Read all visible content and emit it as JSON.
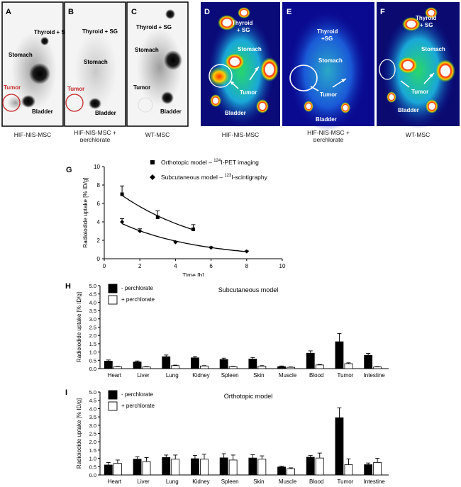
{
  "panels": [
    {
      "letter": "A",
      "caption": "HIF-NIS-MSC",
      "caption2": "",
      "labels": {
        "thyroid": "Thyroid + SG",
        "stomach": "Stomach",
        "tumor": "Tumor",
        "bladder": "Bladder"
      }
    },
    {
      "letter": "B",
      "caption": "HIF-NIS-MSC +",
      "caption2": "perchlorate",
      "labels": {
        "thyroid": "Thyroid + SG",
        "stomach": "Stomach",
        "tumor": "Tumor",
        "bladder": "Bladder"
      }
    },
    {
      "letter": "C",
      "caption": "WT-MSC",
      "caption2": "",
      "labels": {
        "thyroid": "Thyroid + SG",
        "stomach": "Stomach",
        "tumor": "Tumor",
        "bladder": "Bladder"
      }
    },
    {
      "letter": "D",
      "caption": "HIF-NIS-MSC",
      "caption2": "",
      "labels": {
        "thyroid1": "Thyroid",
        "thyroid2": "+ SG",
        "stomach": "Stomach",
        "tumor": "Tumor",
        "bladder": "Bladder"
      }
    },
    {
      "letter": "E",
      "caption": "HIF-NIS-MSC +",
      "caption2": "perchlorate",
      "labels": {
        "thyroid1": "Thyroid",
        "thyroid2": "+SG",
        "stomach": "Stomach",
        "tumor": "Tumor",
        "bladder": "Bladder"
      }
    },
    {
      "letter": "F",
      "caption": "WT-MSC",
      "caption2": "",
      "labels": {
        "thyroid1": "Thyroid",
        "thyroid2": "+ SG",
        "stomach": "Stomach",
        "tumor": "Tumor",
        "bladder": "Bladder"
      }
    }
  ],
  "colors": {
    "tumor_red": "#c62828",
    "pet_white": "#ffffff"
  },
  "chart_data": [
    {
      "type": "line",
      "panel": "G",
      "xlabel": "Time [h]",
      "ylabel": "Radioiodide uptake [% ID/g]",
      "xlim": [
        0,
        10
      ],
      "ylim": [
        0,
        10
      ],
      "xticks": [
        0,
        2,
        4,
        6,
        8,
        10
      ],
      "yticks": [
        0,
        2,
        4,
        6,
        8,
        10
      ],
      "series": [
        {
          "name": "Orthotopic model",
          "legend_prefix": "Orthotopic model – ",
          "legend_sup": "124",
          "legend_suffix": "I-PET imaging",
          "marker": "square",
          "x": [
            1,
            3,
            5
          ],
          "y": [
            7.0,
            4.5,
            3.2
          ],
          "err": [
            0.9,
            0.7,
            0.5
          ]
        },
        {
          "name": "Subcutaneous model",
          "legend_prefix": "Subcutaneous model – ",
          "legend_sup": "123",
          "legend_suffix": "I-scintigraphy",
          "marker": "diamond",
          "x": [
            1,
            2,
            4,
            6,
            8
          ],
          "y": [
            4.0,
            3.0,
            1.8,
            1.2,
            0.8
          ],
          "err": [
            0.35,
            0.25,
            0.1,
            0.1,
            0.05
          ]
        }
      ]
    },
    {
      "type": "bar",
      "panel": "H",
      "title": "Subcutaneous model",
      "ylabel": "Radioiodide uptake [% ID/g]",
      "ylim": [
        0,
        5
      ],
      "yticks": [
        "0.0",
        "0.5",
        "1.0",
        "1.5",
        "2.0",
        "2.5",
        "3.0",
        "3.5",
        "4.0",
        "4.5",
        "5.0"
      ],
      "categories": [
        "Heart",
        "Liver",
        "Lung",
        "Kidney",
        "Spleen",
        "Skin",
        "Muscle",
        "Blood",
        "Tumor",
        "Intestine"
      ],
      "series": [
        {
          "name": "- perchlorate",
          "fill": "#000000",
          "values": [
            0.45,
            0.4,
            0.72,
            0.65,
            0.55,
            0.58,
            0.12,
            0.93,
            1.62,
            0.8
          ],
          "err": [
            0.07,
            0.06,
            0.1,
            0.08,
            0.08,
            0.09,
            0.04,
            0.14,
            0.5,
            0.12
          ]
        },
        {
          "name": "+ perchlorate",
          "fill": "#ffffff",
          "values": [
            0.12,
            0.1,
            0.18,
            0.16,
            0.12,
            0.15,
            0.08,
            0.22,
            0.3,
            0.1
          ],
          "err": [
            0.02,
            0.02,
            0.03,
            0.02,
            0.02,
            0.03,
            0.02,
            0.03,
            0.05,
            0.02
          ]
        }
      ]
    },
    {
      "type": "bar",
      "panel": "I",
      "title": "Orthotopic model",
      "ylabel": "Radioiodide uptake [% ID/g]",
      "ylim": [
        0,
        5
      ],
      "yticks": [
        "0.0",
        "0.5",
        "1.0",
        "1.5",
        "2.0",
        "2.5",
        "3.0",
        "3.5",
        "4.0",
        "4.5",
        "5.0"
      ],
      "categories": [
        "Heart",
        "Liver",
        "Lung",
        "Kidney",
        "Spleen",
        "Skin",
        "Muscle",
        "Blood",
        "Tumor",
        "Intestine"
      ],
      "series": [
        {
          "name": "- perchlorate",
          "fill": "#000000",
          "values": [
            0.6,
            0.95,
            1.05,
            0.98,
            1.03,
            1.02,
            0.48,
            1.07,
            3.45,
            0.62
          ],
          "err": [
            0.15,
            0.15,
            0.15,
            0.2,
            0.25,
            0.2,
            0.05,
            0.1,
            0.6,
            0.1
          ]
        },
        {
          "name": "+ perchlorate",
          "fill": "#ffffff",
          "values": [
            0.7,
            0.8,
            0.95,
            0.95,
            0.9,
            0.95,
            0.38,
            1.02,
            0.62,
            0.75
          ],
          "err": [
            0.2,
            0.25,
            0.25,
            0.3,
            0.3,
            0.2,
            0.05,
            0.3,
            0.35,
            0.25
          ]
        }
      ]
    }
  ],
  "chart_labels": {
    "G": "G",
    "H": "H",
    "I": "I"
  }
}
